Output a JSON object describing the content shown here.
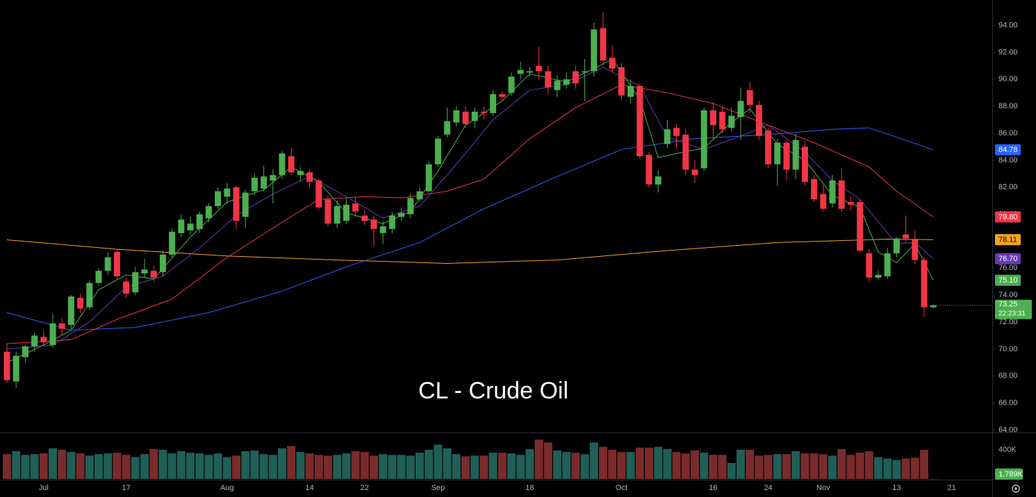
{
  "chart_data": {
    "type": "candlestick",
    "annotation": "CL - Crude Oil",
    "countdown": "22:23:31",
    "categories": [
      null,
      null,
      null,
      null,
      "Jul",
      null,
      null,
      null,
      null,
      null,
      null,
      null,
      null,
      "17",
      null,
      null,
      null,
      null,
      null,
      null,
      null,
      null,
      null,
      null,
      "Aug",
      null,
      null,
      null,
      null,
      null,
      null,
      null,
      null,
      "14",
      null,
      null,
      null,
      null,
      null,
      "22",
      null,
      null,
      null,
      null,
      null,
      null,
      null,
      "Sep",
      null,
      null,
      null,
      null,
      null,
      null,
      null,
      null,
      null,
      "18",
      null,
      null,
      null,
      null,
      null,
      null,
      null,
      null,
      null,
      "Oct",
      null,
      null,
      null,
      null,
      null,
      null,
      null,
      null,
      null,
      "16",
      null,
      null,
      null,
      null,
      null,
      "24",
      null,
      null,
      null,
      null,
      null,
      "Nov",
      null,
      null,
      null,
      null,
      null,
      null,
      null,
      "13",
      null,
      null,
      null,
      null,
      null,
      "21"
    ],
    "open": [
      69.8,
      67.6,
      69.4,
      70.2,
      70.9,
      70.3,
      71.9,
      71.8,
      73.8,
      73.1,
      74.9,
      75.8,
      77.2,
      75.0,
      74.2,
      75.6,
      75.8,
      75.7,
      77.0,
      78.6,
      78.8,
      78.9,
      79.7,
      80.6,
      81.3,
      82.0,
      79.8,
      81.7,
      81.9,
      82.5,
      82.9,
      84.3,
      82.9,
      83.1,
      82.5,
      81.1,
      79.3,
      79.5,
      80.8,
      79.9,
      79.6,
      78.6,
      78.9,
      79.8,
      80.0,
      81.1,
      81.7,
      83.7,
      85.9,
      86.8,
      87.6,
      86.9,
      87.6,
      87.5,
      88.9,
      89.0,
      90.4,
      90.5,
      91.0,
      90.6,
      89.2,
      89.6,
      90.6,
      90.5,
      90.6,
      93.8,
      91.6,
      90.9,
      88.7,
      89.5,
      84.4,
      82.2,
      85.2,
      86.4,
      85.9,
      83.3,
      83.4,
      87.7,
      87.6,
      86.4,
      87.2,
      89.2,
      88.1,
      86.2,
      83.7,
      85.3,
      83.3,
      85.0,
      82.6,
      81.5,
      80.8,
      82.5,
      80.9,
      80.9,
      77.1,
      75.3,
      75.4,
      77.1,
      78.5,
      78.1,
      76.6,
      73.1,
      null,
      null
    ],
    "high": [
      70.4,
      69.8,
      70.3,
      71.2,
      71.4,
      72.6,
      72.3,
      74.0,
      74.1,
      75.1,
      76.0,
      77.2,
      77.4,
      75.3,
      76.1,
      76.7,
      76.2,
      77.3,
      78.9,
      80.0,
      79.8,
      80.2,
      80.8,
      82.0,
      82.3,
      82.1,
      81.8,
      83.0,
      83.6,
      83.3,
      84.7,
      84.9,
      83.5,
      83.3,
      82.6,
      81.4,
      81.0,
      81.2,
      81.3,
      80.3,
      79.9,
      79.5,
      80.2,
      80.5,
      81.5,
      82.0,
      83.9,
      85.8,
      87.9,
      88.0,
      88.0,
      87.9,
      88.0,
      89.2,
      89.1,
      90.5,
      91.3,
      90.9,
      92.4,
      91.0,
      90.3,
      90.5,
      91.0,
      91.5,
      94.2,
      95.0,
      92.5,
      91.2,
      90.0,
      89.7,
      84.6,
      83.3,
      87.0,
      86.7,
      86.3,
      84.0,
      87.9,
      88.3,
      88.0,
      87.9,
      89.4,
      89.8,
      88.4,
      86.4,
      85.6,
      85.5,
      86.0,
      85.4,
      82.9,
      82.2,
      82.9,
      83.4,
      81.3,
      81.1,
      77.4,
      75.8,
      77.5,
      78.3,
      79.9,
      78.8,
      76.8,
      73.3,
      null,
      null
    ],
    "low": [
      67.5,
      67.1,
      69.0,
      69.8,
      70.2,
      70.1,
      71.0,
      71.5,
      72.7,
      72.9,
      74.7,
      75.5,
      75.2,
      73.8,
      74.0,
      75.3,
      75.0,
      75.4,
      76.8,
      78.3,
      78.5,
      78.6,
      79.4,
      80.4,
      80.8,
      78.9,
      79.0,
      81.4,
      81.7,
      80.8,
      82.6,
      82.9,
      82.4,
      81.9,
      80.3,
      79.1,
      79.0,
      79.3,
      79.8,
      79.2,
      77.6,
      77.8,
      78.6,
      79.5,
      79.7,
      80.9,
      81.6,
      83.5,
      85.7,
      86.5,
      86.4,
      86.4,
      87.0,
      87.3,
      88.4,
      88.8,
      90.0,
      90.2,
      90.0,
      88.9,
      88.7,
      89.3,
      89.3,
      88.4,
      90.2,
      91.0,
      90.5,
      88.5,
      88.2,
      84.1,
      82.0,
      81.6,
      84.9,
      84.8,
      82.9,
      82.3,
      83.2,
      85.5,
      86.0,
      86.1,
      85.5,
      87.5,
      85.5,
      83.4,
      82.1,
      82.5,
      82.6,
      82.1,
      80.9,
      80.2,
      80.5,
      80.2,
      80.3,
      77.2,
      75.0,
      75.1,
      75.2,
      76.8,
      77.9,
      76.3,
      72.4,
      73.0,
      null,
      null
    ],
    "close": [
      67.7,
      69.5,
      70.2,
      71.0,
      70.5,
      71.9,
      71.5,
      73.9,
      73.0,
      74.9,
      75.8,
      76.8,
      75.4,
      74.1,
      75.7,
      75.9,
      75.3,
      77.0,
      78.7,
      79.6,
      79.3,
      80.0,
      80.6,
      81.7,
      81.9,
      79.5,
      81.6,
      82.7,
      82.8,
      82.9,
      84.5,
      83.1,
      83.2,
      82.4,
      80.5,
      79.3,
      80.6,
      80.7,
      80.2,
      79.5,
      78.9,
      79.1,
      79.9,
      80.1,
      81.2,
      81.7,
      83.7,
      85.6,
      86.9,
      87.7,
      86.7,
      87.6,
      87.5,
      88.9,
      88.7,
      90.2,
      90.7,
      90.6,
      90.6,
      89.4,
      89.9,
      90.0,
      89.7,
      90.6,
      93.7,
      91.4,
      90.8,
      88.8,
      89.5,
      84.3,
      82.2,
      82.8,
      86.3,
      85.8,
      83.3,
      82.9,
      87.7,
      86.6,
      86.3,
      87.3,
      88.4,
      88.1,
      85.8,
      83.7,
      85.3,
      83.3,
      85.5,
      82.4,
      81.1,
      80.4,
      82.5,
      80.4,
      80.7,
      77.3,
      75.3,
      75.5,
      77.1,
      78.2,
      78.2,
      76.6,
      73.1,
      73.25,
      null,
      null
    ],
    "volume": [
      340000,
      380000,
      330000,
      340000,
      350000,
      420000,
      400000,
      370000,
      350000,
      320000,
      340000,
      350000,
      360000,
      330000,
      300000,
      340000,
      410000,
      400000,
      350000,
      380000,
      360000,
      350000,
      330000,
      350000,
      300000,
      320000,
      380000,
      390000,
      340000,
      330000,
      420000,
      450000,
      370000,
      350000,
      330000,
      320000,
      330000,
      350000,
      380000,
      370000,
      320000,
      340000,
      330000,
      330000,
      320000,
      360000,
      400000,
      470000,
      420000,
      340000,
      310000,
      320000,
      320000,
      360000,
      360000,
      350000,
      330000,
      410000,
      540000,
      500000,
      390000,
      370000,
      360000,
      340000,
      500000,
      440000,
      400000,
      370000,
      370000,
      430000,
      430000,
      440000,
      410000,
      370000,
      350000,
      390000,
      360000,
      330000,
      330000,
      220000,
      400000,
      400000,
      320000,
      330000,
      340000,
      340000,
      380000,
      350000,
      350000,
      340000,
      320000,
      410000,
      330000,
      360000,
      380000,
      300000,
      280000,
      260000,
      280000,
      290000,
      400000,
      1789,
      null,
      null
    ],
    "volume_last_label": "1.789K",
    "up_color": "#4caf50",
    "down_color": "#f23645",
    "volume_up_color": "#1f5f58",
    "volume_down_color": "#7a2b2b",
    "ylim": [
      63.87,
      95.88
    ],
    "yticks": [
      {
        "value": 64,
        "label": "64.00"
      },
      {
        "value": 66,
        "label": "66.00"
      },
      {
        "value": 68,
        "label": "68.00"
      },
      {
        "value": 70,
        "label": "70.00"
      },
      {
        "value": 72,
        "label": "72.00"
      },
      {
        "value": 74,
        "label": "74.00"
      },
      {
        "value": 76,
        "label": "76.00"
      },
      {
        "value": 78,
        "label": "78.00"
      },
      {
        "value": 80,
        "label": "80.00"
      },
      {
        "value": 82,
        "label": "82.00"
      },
      {
        "value": 84,
        "label": "84.00"
      },
      {
        "value": 86,
        "label": "86.00"
      },
      {
        "value": 88,
        "label": "88.00"
      },
      {
        "value": 90,
        "label": "90.00"
      },
      {
        "value": 92,
        "label": "92.00"
      },
      {
        "value": 94,
        "label": "94.00"
      }
    ],
    "volume_ylim": [
      0,
      628000
    ],
    "volume_yticks": [
      {
        "value": 400000,
        "label": "400K"
      }
    ],
    "grid": false,
    "series": [
      {
        "color": "#f7a21b",
        "x": [
          0,
          12,
          24,
          36,
          48,
          60,
          72,
          84,
          96,
          101
        ],
        "values": [
          78.1,
          77.4,
          76.9,
          76.6,
          76.35,
          76.6,
          77.3,
          77.9,
          78.15,
          78.11
        ],
        "last_value_label": "78.11",
        "label_text_color": "#000000"
      },
      {
        "color": "#2962ff",
        "x": [
          0,
          7,
          14,
          22,
          30,
          37,
          45,
          52,
          60,
          67,
          75,
          83,
          90,
          94,
          101
        ],
        "values": [
          72.7,
          71.4,
          71.6,
          72.7,
          74.3,
          76.1,
          77.9,
          80.4,
          82.8,
          84.8,
          85.6,
          85.9,
          86.3,
          86.4,
          84.78
        ],
        "last_value_label": "84.78",
        "label_text_color": "#ffffff"
      },
      {
        "color": "#f23645",
        "x": [
          0,
          7,
          12,
          18,
          24,
          30,
          34,
          39,
          43,
          48,
          52,
          57,
          62,
          67,
          72,
          77,
          83,
          88,
          94,
          97,
          101
        ],
        "values": [
          70.4,
          70.7,
          72.2,
          73.7,
          76.8,
          79.4,
          81.1,
          81.3,
          81.2,
          81.7,
          82.6,
          85.6,
          87.9,
          89.6,
          89.0,
          88.2,
          86.6,
          85.3,
          83.5,
          81.7,
          79.8
        ],
        "last_value_label": "79.80",
        "label_text_color": "#ffffff"
      },
      {
        "color": "#673ab7",
        "x": [
          0,
          5,
          9,
          13,
          17,
          21,
          25,
          29,
          33,
          37,
          41,
          45,
          49,
          53,
          57,
          61,
          65,
          69,
          72,
          76,
          80,
          83,
          87,
          90,
          93,
          97,
          99,
          101
        ],
        "values": [
          70.0,
          70.3,
          72.0,
          74.6,
          75.4,
          77.5,
          79.9,
          81.5,
          82.8,
          81.3,
          79.7,
          80.6,
          83.7,
          87.0,
          89.2,
          89.6,
          90.9,
          89.5,
          85.7,
          84.8,
          85.8,
          86.6,
          84.6,
          82.5,
          81.1,
          77.8,
          77.9,
          76.7
        ],
        "last_value_label": "76.70",
        "label_text_color": "#ffffff"
      },
      {
        "color": "#4caf50",
        "x": [
          0,
          4,
          7,
          10,
          13,
          16,
          20,
          24,
          28,
          31,
          34,
          37,
          41,
          44,
          47,
          50,
          54,
          57,
          61,
          64,
          66,
          69,
          71,
          73,
          76,
          79,
          81,
          84,
          87,
          90,
          93,
          95,
          97,
          99,
          101
        ],
        "values": [
          69.0,
          70.3,
          71.4,
          74.4,
          75.5,
          75.2,
          78.3,
          80.9,
          81.8,
          83.5,
          82.4,
          80.1,
          79.3,
          80.2,
          83.2,
          86.6,
          88.4,
          90.4,
          89.8,
          90.8,
          91.5,
          88.5,
          84.2,
          84.5,
          84.9,
          86.8,
          87.8,
          85.2,
          84.0,
          81.4,
          80.5,
          77.2,
          76.4,
          77.8,
          75.1
        ],
        "last_value_label": "75.10",
        "label_text_color": "#ffffff"
      }
    ]
  }
}
